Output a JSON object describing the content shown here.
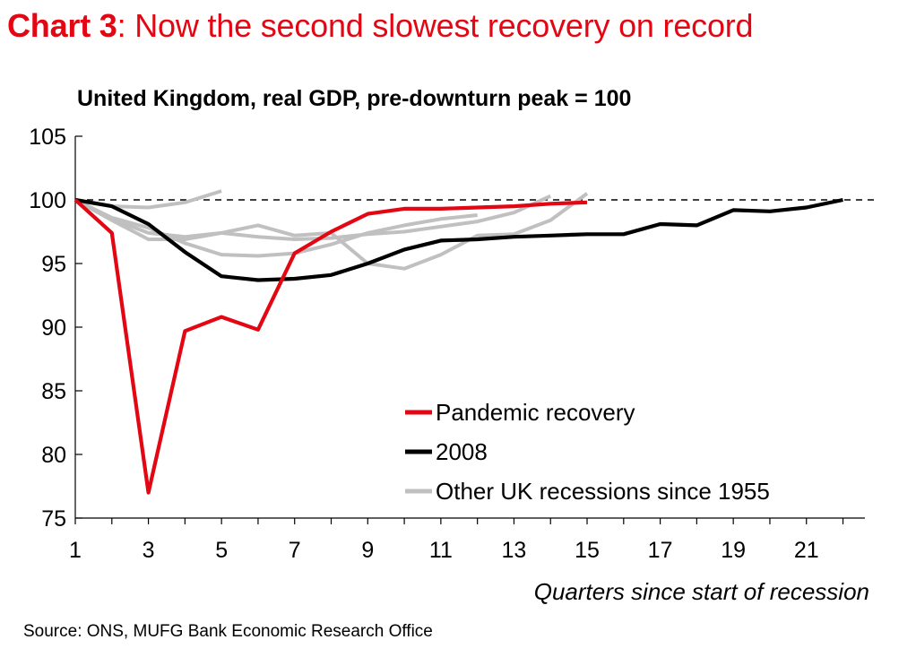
{
  "header": {
    "lead": "Chart 3",
    "rest": ": Now the second slowest recovery on record"
  },
  "source": "Source: ONS, MUFG Bank Economic Research Office",
  "chart_data": {
    "type": "line",
    "title": "United Kingdom, real GDP, pre-downturn peak = 100",
    "xlabel": "Quarters since start of recession",
    "ylabel": "",
    "xlim": [
      1,
      22.6
    ],
    "ylim": [
      75,
      105
    ],
    "x_ticks": [
      1,
      3,
      5,
      7,
      9,
      11,
      13,
      15,
      17,
      19,
      21
    ],
    "y_ticks": [
      75,
      80,
      85,
      90,
      95,
      100,
      105
    ],
    "reference_line": {
      "y": 100,
      "style": "dashed"
    },
    "legend_position": "bottom-right",
    "legend": [
      {
        "label": "Pandemic recovery",
        "color": "#e30613"
      },
      {
        "label": "2008",
        "color": "#000000"
      },
      {
        "label": "Other UK recessions since 1955",
        "color": "#c0c0c0"
      }
    ],
    "series": [
      {
        "name": "Other UK recessions since 1955",
        "color": "#c0c0c0",
        "x": [
          1,
          2,
          3,
          4,
          5
        ],
        "y": [
          100,
          99.5,
          99.4,
          99.8,
          100.7
        ]
      },
      {
        "name": "Other UK recessions since 1955",
        "color": "#c0c0c0",
        "x": [
          1,
          2,
          3,
          4,
          5,
          6,
          7,
          8,
          9,
          10,
          11,
          12,
          13,
          14
        ],
        "y": [
          100,
          98.5,
          97.4,
          97.1,
          97.4,
          97.1,
          96.9,
          97.0,
          97.3,
          97.5,
          97.9,
          98.3,
          99.0,
          100.3
        ]
      },
      {
        "name": "Other UK recessions since 1955",
        "color": "#c0c0c0",
        "x": [
          1,
          2,
          3,
          4,
          5,
          6,
          7,
          8,
          9,
          10,
          11,
          12
        ],
        "y": [
          100,
          98.6,
          97.8,
          96.6,
          95.7,
          95.6,
          95.8,
          96.5,
          97.4,
          98.0,
          98.5,
          98.8
        ]
      },
      {
        "name": "Other UK recessions since 1955",
        "color": "#c0c0c0",
        "x": [
          1,
          2,
          3,
          4,
          5,
          6,
          7,
          8,
          9,
          10,
          11,
          12,
          13,
          14,
          15
        ],
        "y": [
          100,
          98.4,
          96.9,
          96.9,
          97.4,
          98.0,
          97.2,
          97.4,
          95.0,
          94.6,
          95.7,
          97.2,
          97.3,
          98.4,
          100.5
        ]
      },
      {
        "name": "2008",
        "color": "#000000",
        "x": [
          1,
          2,
          3,
          4,
          5,
          6,
          7,
          8,
          9,
          10,
          11,
          12,
          13,
          14,
          15,
          16,
          17,
          18,
          19,
          20,
          21,
          22
        ],
        "y": [
          100,
          99.5,
          98.1,
          95.9,
          94.0,
          93.7,
          93.8,
          94.1,
          95.0,
          96.1,
          96.8,
          96.9,
          97.1,
          97.2,
          97.3,
          97.3,
          98.1,
          98.0,
          99.2,
          99.1,
          99.4,
          100.0
        ]
      },
      {
        "name": "Pandemic recovery",
        "color": "#e30613",
        "x": [
          1,
          2,
          3,
          4,
          5,
          6,
          7,
          8,
          9,
          10,
          11,
          12,
          13,
          14,
          15
        ],
        "y": [
          100,
          97.4,
          77.0,
          89.7,
          90.8,
          89.8,
          95.8,
          97.5,
          98.9,
          99.3,
          99.3,
          99.4,
          99.5,
          99.7,
          99.8
        ]
      }
    ]
  }
}
